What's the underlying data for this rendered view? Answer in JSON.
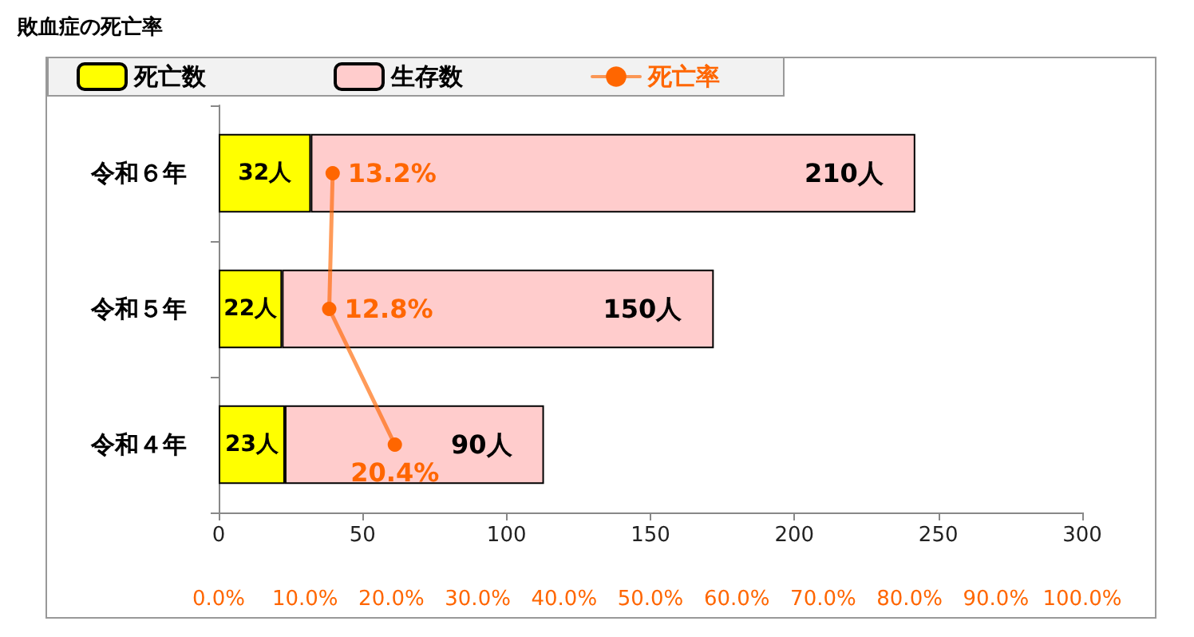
{
  "chart_data": {
    "type": "bar",
    "orientation": "horizontal",
    "stacked": true,
    "title": "敗血症の死亡率",
    "categories": [
      "令和６年",
      "令和５年",
      "令和４年"
    ],
    "series": [
      {
        "name": "死亡数",
        "color": "#ffff00",
        "values": [
          32,
          22,
          23
        ],
        "value_labels": [
          "32人",
          "22人",
          "23人"
        ]
      },
      {
        "name": "生存数",
        "color": "#ffcccc",
        "values": [
          210,
          150,
          90
        ],
        "value_labels": [
          "210人",
          "150人",
          "90人"
        ]
      },
      {
        "name": "死亡率",
        "type": "line",
        "axis": "x2",
        "color": "#ff6600",
        "values": [
          13.2,
          12.8,
          20.4
        ],
        "value_labels": [
          "13.2%",
          "12.8%",
          "20.4%"
        ]
      }
    ],
    "xlim": [
      0,
      300
    ],
    "xticks": [
      0,
      50,
      100,
      150,
      200,
      250,
      300
    ],
    "x2lim": [
      0,
      100
    ],
    "x2ticks": [
      {
        "value": 0,
        "label": "0.0%"
      },
      {
        "value": 10,
        "label": "10.0%"
      },
      {
        "value": 20,
        "label": "20.0%"
      },
      {
        "value": 30,
        "label": "30.0%"
      },
      {
        "value": 40,
        "label": "40.0%"
      },
      {
        "value": 50,
        "label": "50.0%"
      },
      {
        "value": 60,
        "label": "60.0%"
      },
      {
        "value": 70,
        "label": "70.0%"
      },
      {
        "value": 80,
        "label": "80.0%"
      },
      {
        "value": 90,
        "label": "90.0%"
      },
      {
        "value": 100,
        "label": "100.0%"
      }
    ],
    "grid": false,
    "legend": "top",
    "marker": "circle",
    "line_style": "solid"
  }
}
